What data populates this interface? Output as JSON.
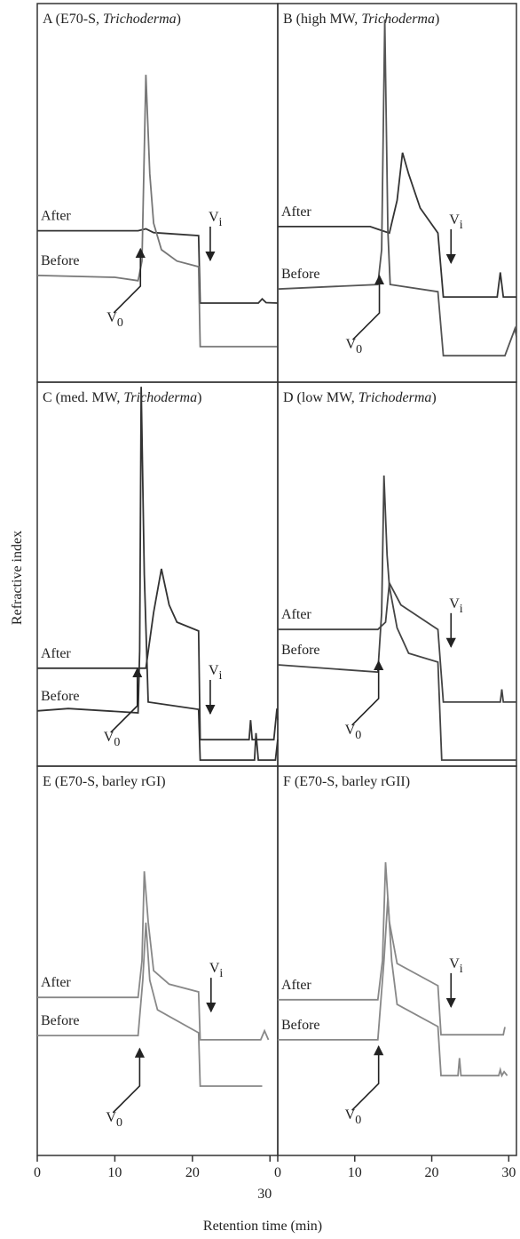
{
  "ylabel": "Refractive index",
  "xlabel": "Retention time (min)",
  "chart_data": [
    {
      "type": "line",
      "title": "A (E70-S, Trichoderma)",
      "italic": "Trichoderma",
      "xlim": [
        0,
        31
      ],
      "ylim": [
        0,
        100
      ],
      "xticks": [
        0,
        10,
        20,
        30
      ],
      "series": [
        {
          "name": "After",
          "color": "#333333",
          "x": [
            0,
            5,
            13,
            14,
            15,
            20.8,
            21,
            28.5,
            29,
            29.5,
            31
          ],
          "values": [
            40,
            40,
            40,
            40.5,
            39.5,
            38.7,
            20.9,
            20.9,
            22,
            21,
            20.9
          ]
        },
        {
          "name": "Before",
          "color": "#777777",
          "x": [
            0,
            10,
            13,
            13.5,
            14,
            14.5,
            15,
            16,
            18,
            20.8,
            21,
            31
          ],
          "values": [
            28.2,
            27.7,
            26.8,
            32,
            81.2,
            55,
            42,
            35,
            32,
            30.5,
            9.4,
            9.4
          ]
        }
      ],
      "annotations": [
        {
          "text": "V",
          "sub": "0",
          "x": 13.3,
          "y": 35.7,
          "dir": "up"
        },
        {
          "text": "V",
          "sub": "i",
          "x": 22.3,
          "y": 31.7,
          "dir": "down"
        }
      ]
    },
    {
      "type": "line",
      "title": "B (high MW, Trichoderma)",
      "italic": "Trichoderma",
      "xlim": [
        0,
        31
      ],
      "ylim": [
        0,
        100
      ],
      "xticks": [
        0,
        10,
        20,
        30
      ],
      "series": [
        {
          "name": "After",
          "color": "#333333",
          "x": [
            0,
            12,
            13,
            14.5,
            15.5,
            16.2,
            17,
            18.5,
            20.8,
            21.5,
            28.5,
            28.9,
            29.3,
            31
          ],
          "values": [
            41.1,
            41.1,
            40.4,
            39.4,
            48,
            60.6,
            55,
            46,
            39.4,
            22.5,
            22.5,
            29,
            22.5,
            22.5
          ]
        },
        {
          "name": "Before",
          "color": "#555555",
          "x": [
            0,
            13,
            13.5,
            13.9,
            14.3,
            14.6,
            20.8,
            21.5,
            29.5,
            30.8,
            31
          ],
          "values": [
            24.6,
            25.8,
            35,
            95.8,
            40,
            25.8,
            23.9,
            7,
            7,
            14.1,
            12
          ]
        }
      ],
      "annotations": [
        {
          "text": "V",
          "sub": "0",
          "x": 13.2,
          "y": 28.6,
          "dir": "up"
        },
        {
          "text": "V",
          "sub": "i",
          "x": 22.5,
          "y": 31,
          "dir": "down"
        }
      ]
    },
    {
      "type": "line",
      "title": "C (med. MW, Trichoderma)",
      "italic": "Trichoderma",
      "xlim": [
        0,
        31
      ],
      "ylim": [
        0,
        100
      ],
      "xticks": [
        0,
        10,
        20,
        30
      ],
      "series": [
        {
          "name": "After",
          "color": "#333333",
          "x": [
            0,
            13,
            14,
            15,
            16,
            17,
            18,
            20.8,
            21,
            27.3,
            27.5,
            27.7,
            30.5,
            30.9,
            31
          ],
          "values": [
            25.5,
            25.5,
            25.5,
            40,
            51.4,
            42,
            37.5,
            35.2,
            6.9,
            6.9,
            12,
            6.9,
            6.9,
            15,
            12
          ]
        },
        {
          "name": "Before",
          "color": "#333333",
          "x": [
            0,
            4,
            13,
            13.2,
            13.4,
            13.8,
            14.3,
            20.8,
            21,
            28,
            28.2,
            28.5,
            30.7,
            31
          ],
          "values": [
            14.4,
            15,
            13.9,
            30,
            98.8,
            50,
            16.7,
            14.8,
            1.6,
            1.6,
            8.6,
            1.6,
            1.6,
            7
          ]
        }
      ],
      "annotations": [
        {
          "text": "V",
          "sub": "0",
          "x": 12.9,
          "y": 25.9,
          "dir": "up"
        },
        {
          "text": "V",
          "sub": "i",
          "x": 22.3,
          "y": 13.2,
          "dir": "down"
        }
      ]
    },
    {
      "type": "line",
      "title": "D (low MW, Trichoderma)",
      "italic": "Trichoderma",
      "xlim": [
        0,
        31
      ],
      "ylim": [
        0,
        100
      ],
      "xticks": [
        0,
        10,
        20,
        30
      ],
      "series": [
        {
          "name": "After",
          "color": "#444444",
          "x": [
            0,
            13,
            14,
            14.5,
            16,
            20.8,
            21.5,
            28.9,
            29.1,
            29.3,
            31
          ],
          "values": [
            35.6,
            35.6,
            37.5,
            47.7,
            42,
            35.6,
            16.7,
            16.7,
            20,
            16.7,
            16.7
          ]
        },
        {
          "name": "Before",
          "color": "#444444",
          "x": [
            0,
            13,
            13.5,
            13.8,
            14.2,
            14.5,
            15.5,
            17,
            20.8,
            21.3,
            31
          ],
          "values": [
            26.4,
            24.5,
            40,
            75.7,
            55,
            46.8,
            36,
            29.4,
            27.1,
            1.6,
            1.6
          ]
        }
      ],
      "annotations": [
        {
          "text": "V",
          "sub": "0",
          "x": 13.1,
          "y": 27.8,
          "dir": "up"
        },
        {
          "text": "V",
          "sub": "i",
          "x": 22.5,
          "y": 30.6,
          "dir": "down"
        }
      ]
    },
    {
      "type": "line",
      "title": "E (E70-S, barley rGI)",
      "xlim": [
        0,
        31
      ],
      "ylim": [
        0,
        100
      ],
      "xticks": [
        0,
        10,
        20,
        30
      ],
      "series": [
        {
          "name": "After",
          "color": "#888888",
          "x": [
            0,
            13,
            13.5,
            13.8,
            14.3,
            15,
            17,
            20.8,
            21,
            28.8,
            29.3,
            29.8
          ],
          "values": [
            40.6,
            40.6,
            50,
            73,
            60,
            47.5,
            44,
            42,
            29.7,
            29.7,
            32,
            29.7
          ]
        },
        {
          "name": "Before",
          "color": "#888888",
          "x": [
            0,
            13,
            13.6,
            14,
            14.5,
            15.5,
            20.8,
            21,
            29
          ],
          "values": [
            30.8,
            30.8,
            45,
            59.8,
            45,
            37.4,
            31.5,
            17.8,
            17.8
          ]
        }
      ],
      "annotations": [
        {
          "text": "V",
          "sub": "0",
          "x": 13.2,
          "y": 27.9,
          "dir": "up"
        },
        {
          "text": "V",
          "sub": "i",
          "x": 22.4,
          "y": 36.5,
          "dir": "down"
        }
      ]
    },
    {
      "type": "line",
      "title": "F (E70-S, barley rGII)",
      "xlim": [
        0,
        31
      ],
      "ylim": [
        0,
        100
      ],
      "xticks": [
        0,
        10,
        20,
        30
      ],
      "series": [
        {
          "name": "After",
          "color": "#888888",
          "x": [
            0,
            13,
            13.6,
            14,
            14.5,
            15.5,
            20.8,
            21.2,
            29.3,
            29.5
          ],
          "values": [
            40,
            40,
            50,
            75.3,
            60,
            49.3,
            43.6,
            31,
            31,
            33
          ]
        },
        {
          "name": "Before",
          "color": "#888888",
          "x": [
            0,
            13,
            13.8,
            14.3,
            14.8,
            15.5,
            20.8,
            21.2,
            23.4,
            23.6,
            23.8,
            28.7,
            28.9,
            29.1,
            29.4,
            29.8
          ],
          "values": [
            29.7,
            29.7,
            50,
            66.2,
            50,
            38.8,
            33.1,
            20.5,
            20.5,
            25,
            20.5,
            20.5,
            22,
            20.5,
            21.5,
            20.5
          ]
        }
      ],
      "annotations": [
        {
          "text": "V",
          "sub": "0",
          "x": 13.1,
          "y": 28.5,
          "dir": "up"
        },
        {
          "text": "V",
          "sub": "i",
          "x": 22.5,
          "y": 37.7,
          "dir": "down"
        }
      ]
    }
  ]
}
